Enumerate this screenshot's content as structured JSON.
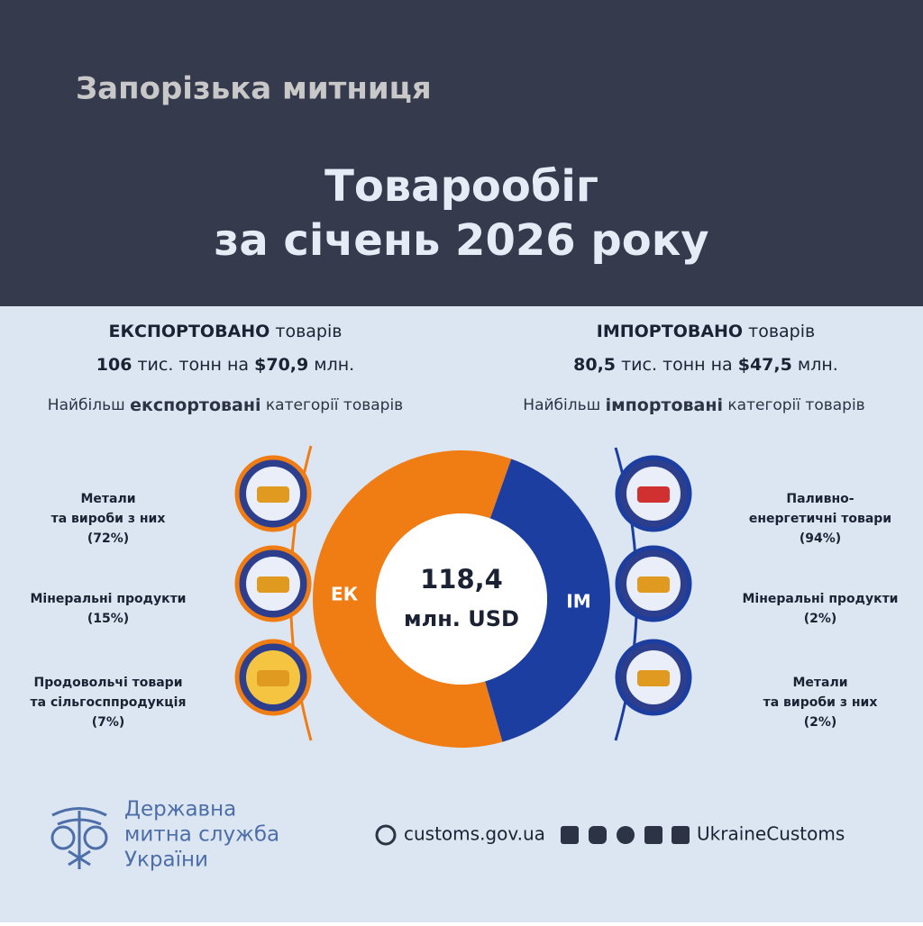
{
  "header": {
    "org": "Запорізька митниця",
    "title_line1": "Товарообіг",
    "title_line2": "за січень 2026 року"
  },
  "chart_data": {
    "type": "pie",
    "categories": [
      "ЕК",
      "ІМ"
    ],
    "values": [
      70.9,
      47.5
    ],
    "value_labels": [
      "$70,9",
      "$47,5"
    ],
    "colors": [
      "#f07c14",
      "#1c3ea0"
    ],
    "center_value": "118,4",
    "center_unit": "млн. USD"
  },
  "export": {
    "heading_bold": "ЕКСПОРТОВАНО",
    "heading_rest": "товарів",
    "tonnes": "106",
    "tonnes_unit": "тис. тонн",
    "on": "на",
    "money_unit": "млн.",
    "top_pre": "Найбільш",
    "top_bold": "експортовані",
    "top_post": "категорії товарів",
    "items": [
      {
        "lines": [
          "Метали",
          "та вироби з них"
        ],
        "share": "(72%)"
      },
      {
        "lines": [
          "Мінеральні продукти"
        ],
        "share": "(15%)"
      },
      {
        "lines": [
          "Продовольчі  товари",
          "та сільгосппродукція"
        ],
        "share": "(7%)"
      }
    ]
  },
  "import": {
    "heading_bold": "ІМПОРТОВАНО",
    "heading_rest": "товарів",
    "tonnes": "80,5",
    "tonnes_unit": "тис. тонн",
    "on": "на",
    "money_unit": "млн.",
    "top_pre": "Найбільш",
    "top_bold": "імпортовані",
    "top_post": "категорії товарів",
    "items": [
      {
        "lines": [
          "Паливно-",
          "енергетичні товари"
        ],
        "share": "(94%)"
      },
      {
        "lines": [
          "Мінеральні продукти"
        ],
        "share": "(2%)"
      },
      {
        "lines": [
          "Метали",
          "та вироби з них"
        ],
        "share": "(2%)"
      }
    ]
  },
  "footer": {
    "agency_lines": [
      "Державна",
      "митна служба",
      "України"
    ],
    "site": "customs.gov.ua",
    "handle": "UkraineCustoms"
  }
}
